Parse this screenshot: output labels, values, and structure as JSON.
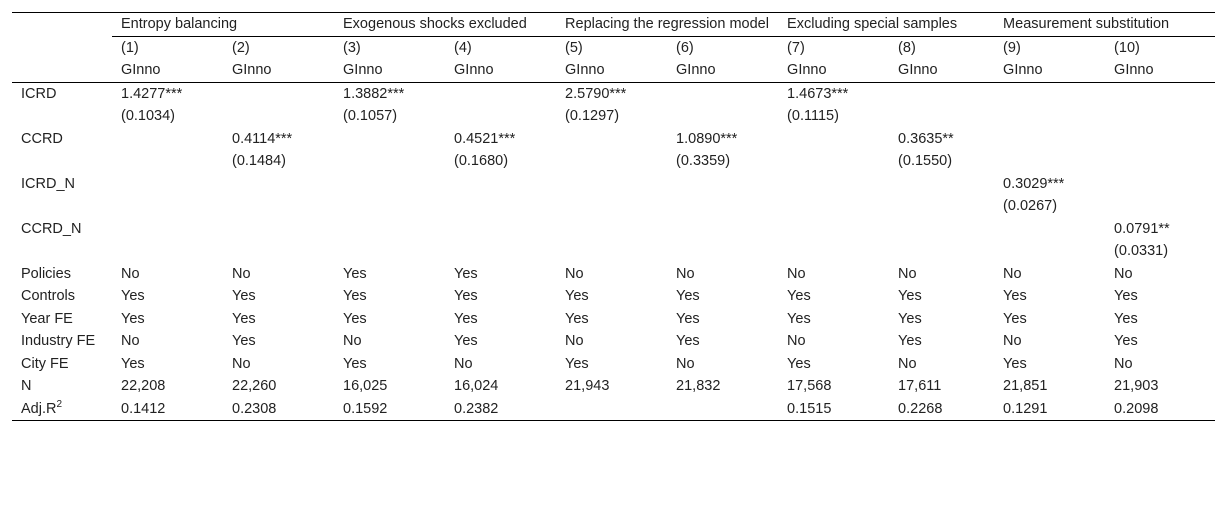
{
  "groups": [
    "Entropy balancing",
    "Exogenous shocks excluded",
    "Replacing the regression model",
    "Excluding special samples",
    "Measurement substitution"
  ],
  "columns": [
    "(1)",
    "(2)",
    "(3)",
    "(4)",
    "(5)",
    "(6)",
    "(7)",
    "(8)",
    "(9)",
    "(10)"
  ],
  "dependent": [
    "GInno",
    "GInno",
    "GInno",
    "GInno",
    "GInno",
    "GInno",
    "GInno",
    "GInno",
    "GInno",
    "GInno"
  ],
  "coef_rows": [
    {
      "label": "ICRD",
      "coef": [
        "1.4277***",
        "",
        "1.3882***",
        "",
        "2.5790***",
        "",
        "1.4673***",
        "",
        "",
        ""
      ],
      "se": [
        "(0.1034)",
        "",
        "(0.1057)",
        "",
        "(0.1297)",
        "",
        "(0.1115)",
        "",
        "",
        ""
      ]
    },
    {
      "label": "CCRD",
      "coef": [
        "",
        "0.4114***",
        "",
        "0.4521***",
        "",
        "1.0890***",
        "",
        "0.3635**",
        "",
        ""
      ],
      "se": [
        "",
        "(0.1484)",
        "",
        "(0.1680)",
        "",
        "(0.3359)",
        "",
        "(0.1550)",
        "",
        ""
      ]
    },
    {
      "label": "ICRD_N",
      "coef": [
        "",
        "",
        "",
        "",
        "",
        "",
        "",
        "",
        "0.3029***",
        ""
      ],
      "se": [
        "",
        "",
        "",
        "",
        "",
        "",
        "",
        "",
        "(0.0267)",
        ""
      ]
    },
    {
      "label": "CCRD_N",
      "coef": [
        "",
        "",
        "",
        "",
        "",
        "",
        "",
        "",
        "",
        "0.0791**"
      ],
      "se": [
        "",
        "",
        "",
        "",
        "",
        "",
        "",
        "",
        "",
        "(0.0331)"
      ]
    }
  ],
  "info_rows": [
    {
      "label": "Policies",
      "values": [
        "No",
        "No",
        "Yes",
        "Yes",
        "No",
        "No",
        "No",
        "No",
        "No",
        "No"
      ]
    },
    {
      "label": "Controls",
      "values": [
        "Yes",
        "Yes",
        "Yes",
        "Yes",
        "Yes",
        "Yes",
        "Yes",
        "Yes",
        "Yes",
        "Yes"
      ]
    },
    {
      "label": "Year FE",
      "values": [
        "Yes",
        "Yes",
        "Yes",
        "Yes",
        "Yes",
        "Yes",
        "Yes",
        "Yes",
        "Yes",
        "Yes"
      ]
    },
    {
      "label": "Industry FE",
      "values": [
        "No",
        "Yes",
        "No",
        "Yes",
        "No",
        "Yes",
        "No",
        "Yes",
        "No",
        "Yes"
      ]
    },
    {
      "label": "City FE",
      "values": [
        "Yes",
        "No",
        "Yes",
        "No",
        "Yes",
        "No",
        "Yes",
        "No",
        "Yes",
        "No"
      ]
    },
    {
      "label": "N",
      "values": [
        "22,208",
        "22,260",
        "16,025",
        "16,024",
        "21,943",
        "21,832",
        "17,568",
        "17,611",
        "21,851",
        "21,903"
      ]
    },
    {
      "label": "Adj.R",
      "label_sup": "2",
      "values": [
        "0.1412",
        "0.2308",
        "0.1592",
        "0.2382",
        "",
        "",
        "0.1515",
        "0.2268",
        "0.1291",
        "0.2098"
      ]
    }
  ]
}
